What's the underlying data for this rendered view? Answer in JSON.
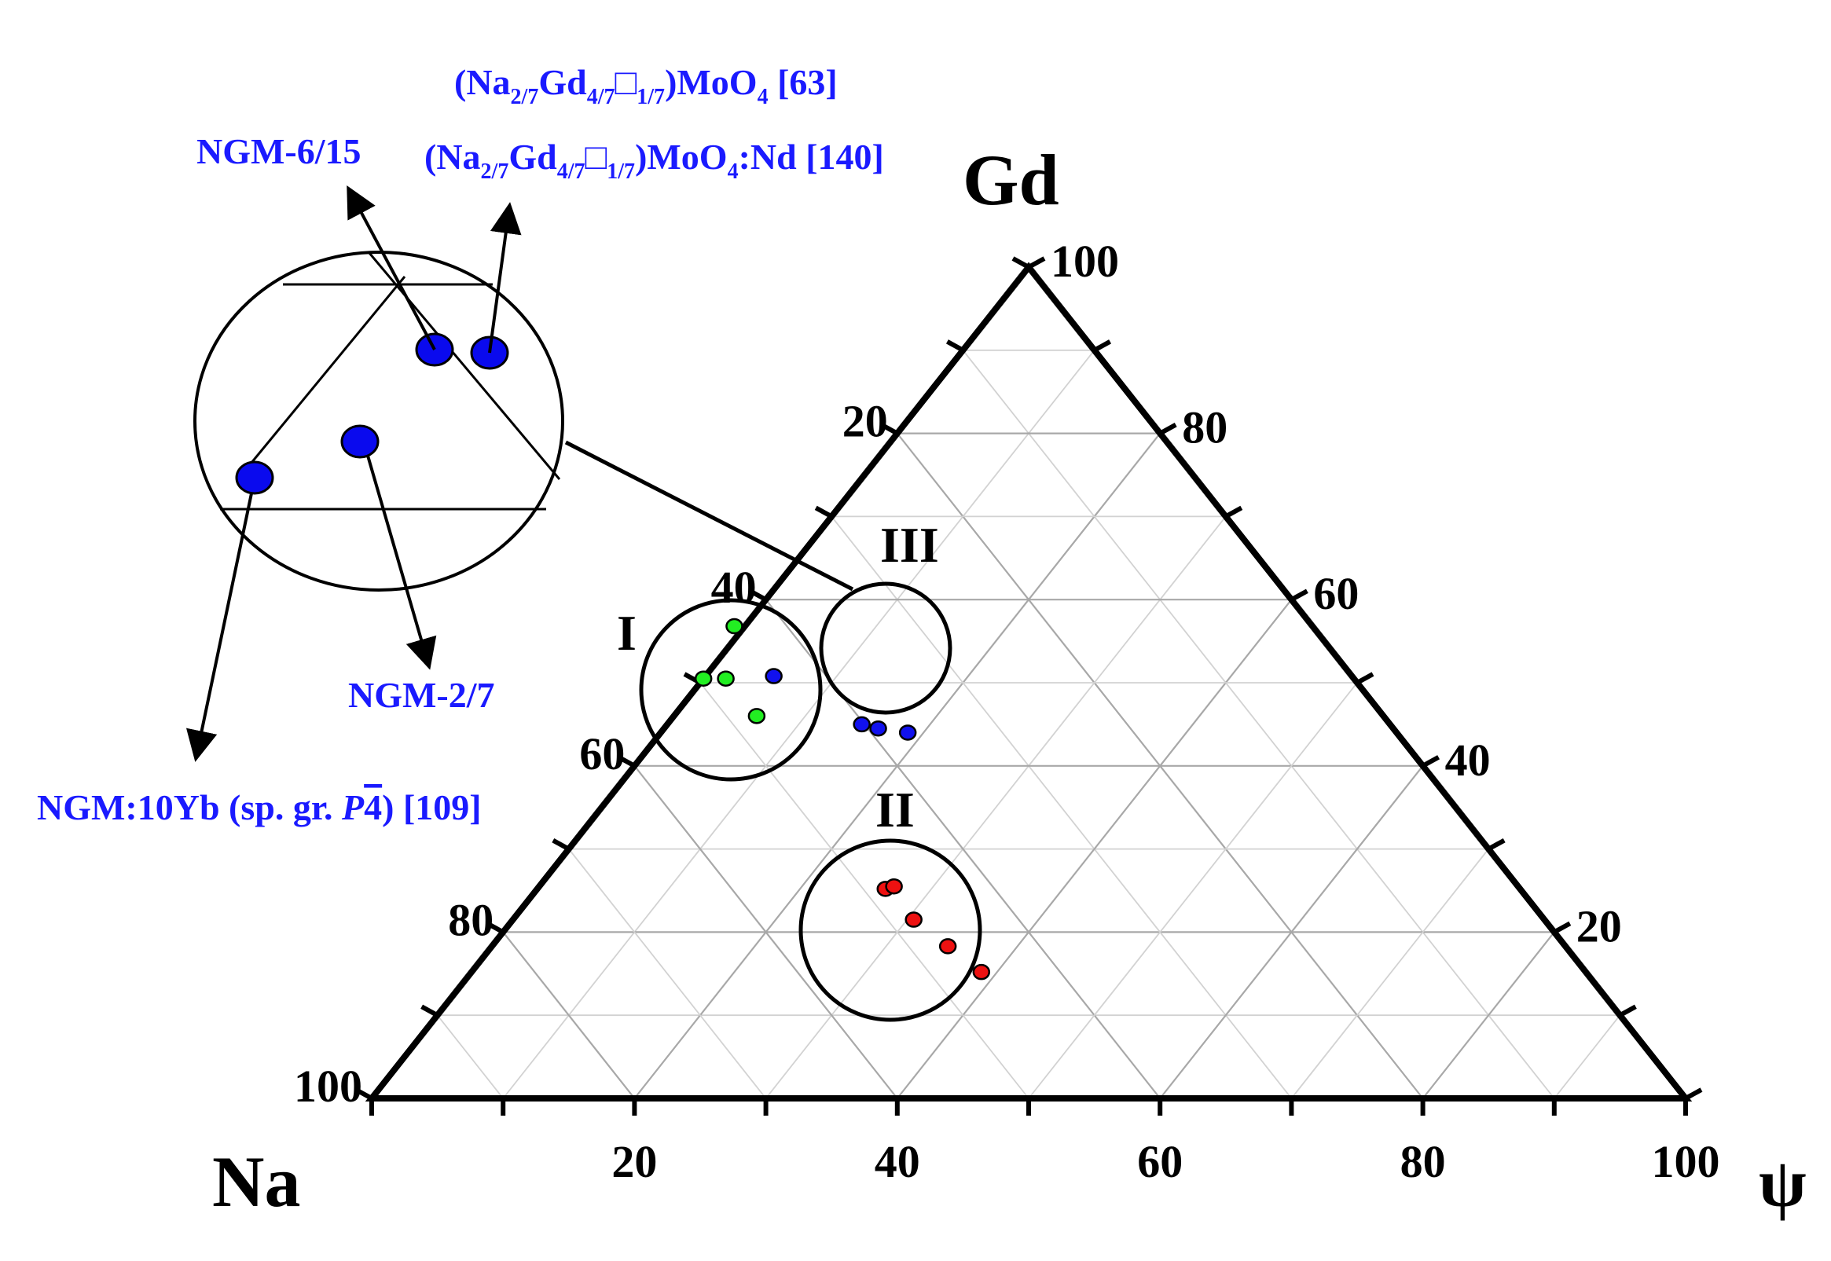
{
  "chart_data": {
    "type": "ternary",
    "vertices": {
      "top": "Gd",
      "left": "Na",
      "right": "ψ"
    },
    "bottom_axis_ticks": [
      "20",
      "40",
      "60",
      "80",
      "100"
    ],
    "left_axis_ticks": [
      "20",
      "40",
      "60",
      "80",
      "100"
    ],
    "right_axis_ticks": [
      "100",
      "80",
      "60",
      "40",
      "20"
    ],
    "region_labels": [
      "I",
      "II",
      "III"
    ],
    "colors": {
      "region_I": "#22ee22",
      "region_II": "#ee1111",
      "region_III": "#1111ee",
      "annotation": "#1a1aff"
    },
    "series": [
      {
        "region": "I",
        "color": "#22ee22",
        "points": [
          {
            "na": 49.5,
            "gd": 50.5,
            "psi": 0.0
          },
          {
            "na": 47.8,
            "gd": 50.5,
            "psi": 1.7
          },
          {
            "na": 47.7,
            "gd": 46.0,
            "psi": 6.3
          },
          {
            "na": 44.0,
            "gd": 56.8,
            "psi": -0.8
          }
        ]
      },
      {
        "region": "II",
        "color": "#ee1111",
        "points": [
          {
            "na": 48.3,
            "gd": 25.2,
            "psi": 26.5
          },
          {
            "na": 47.5,
            "gd": 25.5,
            "psi": 27.0
          },
          {
            "na": 48.0,
            "gd": 21.5,
            "psi": 30.5
          },
          {
            "na": 47.0,
            "gd": 18.3,
            "psi": 34.7
          },
          {
            "na": 46.0,
            "gd": 15.2,
            "psi": 38.8
          }
        ]
      },
      {
        "region": "III",
        "color": "#1111ee",
        "points": [
          {
            "na": 40.2,
            "gd": 45.0,
            "psi": 14.8
          },
          {
            "na": 39.2,
            "gd": 44.5,
            "psi": 16.3
          },
          {
            "na": 37.2,
            "gd": 44.0,
            "psi": 18.8
          },
          {
            "na": 44.0,
            "gd": 50.8,
            "psi": 5.2
          }
        ]
      }
    ],
    "annotations": [
      {
        "name": "ngm-6-15",
        "text": "NGM-6/15"
      },
      {
        "name": "ngm-2-7",
        "text": "NGM-2/7"
      },
      {
        "name": "ngm-10yb",
        "main": "NGM:10Yb (sp. gr. ",
        "italic": "P",
        "bar": "4",
        "tail": ") [109]"
      },
      {
        "name": "ref-63",
        "text": "(Na2/7Gd4/7□1/7)MoO4 [63]"
      },
      {
        "name": "ref-140",
        "text": "(Na2/7Gd4/7□1/7)MoO4:Nd [140]"
      }
    ]
  },
  "labels": {
    "vertex_gd": "Gd",
    "vertex_na": "Na",
    "vertex_psi": "ψ",
    "region_I": "I",
    "region_II": "II",
    "region_III": "III",
    "ngm615": "NGM-6/15",
    "ngm27": "NGM-2/7",
    "ngm10yb_main": "NGM:10Yb (sp. gr. ",
    "ngm10yb_italic": "P",
    "ngm10yb_bar": "4",
    "ngm10yb_tail": ") [109]",
    "ref63": {
      "a": "(Na",
      "b": "2/7",
      "c": "Gd",
      "d": "4/7",
      "e": "□",
      "f": "1/7",
      "g": ")MoO",
      "h": "4",
      "i": " [63]"
    },
    "ref140": {
      "a": "(Na",
      "b": "2/7",
      "c": "Gd",
      "d": "4/7",
      "e": "□",
      "f": "1/7",
      "g": ")MoO",
      "h": "4",
      "i": ":Nd [140]"
    }
  }
}
